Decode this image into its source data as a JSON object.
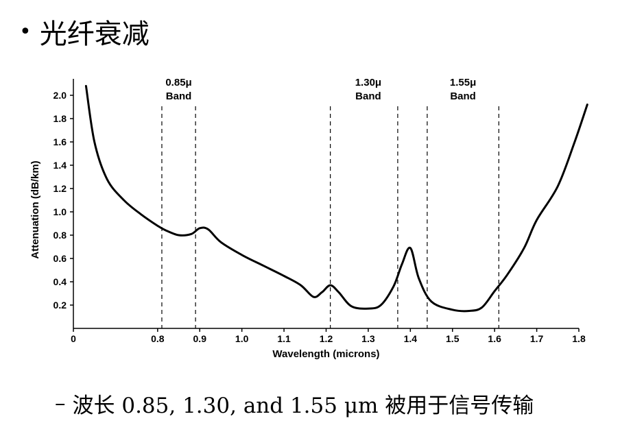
{
  "page": {
    "bullet": "•",
    "title": "光纤衰减",
    "subtitle_dash": "–",
    "subtitle": "波长 0.85, 1.30, and 1.55 μm 被用于信号传输"
  },
  "chart_data": {
    "type": "line",
    "xlabel": "Wavelength (microns)",
    "ylabel": "Attenuation (dB/km)",
    "xlim": [
      0.6,
      1.8
    ],
    "ylim": [
      0,
      2.2
    ],
    "x_ticks": [
      {
        "value": 0.6,
        "label": "0"
      },
      {
        "value": 0.8,
        "label": "0.8"
      },
      {
        "value": 0.9,
        "label": "0.9"
      },
      {
        "value": 1.0,
        "label": "1.0"
      },
      {
        "value": 1.1,
        "label": "1.1"
      },
      {
        "value": 1.2,
        "label": "1.2"
      },
      {
        "value": 1.3,
        "label": "1.3"
      },
      {
        "value": 1.4,
        "label": "1.4"
      },
      {
        "value": 1.5,
        "label": "1.5"
      },
      {
        "value": 1.6,
        "label": "1.6"
      },
      {
        "value": 1.7,
        "label": "1.7"
      },
      {
        "value": 1.8,
        "label": "1.8"
      }
    ],
    "y_ticks": [
      {
        "value": 0.2,
        "label": "0.2"
      },
      {
        "value": 0.4,
        "label": "0.4"
      },
      {
        "value": 0.6,
        "label": "0.6"
      },
      {
        "value": 0.8,
        "label": "0.8"
      },
      {
        "value": 1.0,
        "label": "1.0"
      },
      {
        "value": 1.2,
        "label": "1.2"
      },
      {
        "value": 1.4,
        "label": "1.4"
      },
      {
        "value": 1.6,
        "label": "1.6"
      },
      {
        "value": 1.8,
        "label": "1.8"
      },
      {
        "value": 2.0,
        "label": "2.0"
      }
    ],
    "bands": [
      {
        "line1": "0.85μ",
        "line2": "Band",
        "x_start": 0.81,
        "x_end": 0.89
      },
      {
        "line1": "1.30μ",
        "line2": "Band",
        "x_start": 1.21,
        "x_end": 1.37
      },
      {
        "line1": "1.55μ",
        "line2": "Band",
        "x_start": 1.44,
        "x_end": 1.61
      }
    ],
    "series": [
      {
        "x": [
          0.63,
          0.65,
          0.68,
          0.72,
          0.76,
          0.8,
          0.82,
          0.85,
          0.88,
          0.9,
          0.92,
          0.95,
          1.0,
          1.05,
          1.1,
          1.14,
          1.17,
          1.19,
          1.21,
          1.23,
          1.26,
          1.3,
          1.33,
          1.36,
          1.38,
          1.4,
          1.42,
          1.45,
          1.5,
          1.54,
          1.57,
          1.6,
          1.63,
          1.67,
          1.7,
          1.75,
          1.79,
          1.82
        ],
        "y": [
          2.08,
          1.6,
          1.28,
          1.1,
          0.98,
          0.88,
          0.84,
          0.8,
          0.81,
          0.86,
          0.85,
          0.74,
          0.63,
          0.54,
          0.45,
          0.37,
          0.27,
          0.31,
          0.37,
          0.31,
          0.19,
          0.17,
          0.2,
          0.36,
          0.55,
          0.69,
          0.43,
          0.23,
          0.16,
          0.15,
          0.18,
          0.32,
          0.46,
          0.69,
          0.93,
          1.22,
          1.6,
          1.92
        ]
      }
    ]
  }
}
